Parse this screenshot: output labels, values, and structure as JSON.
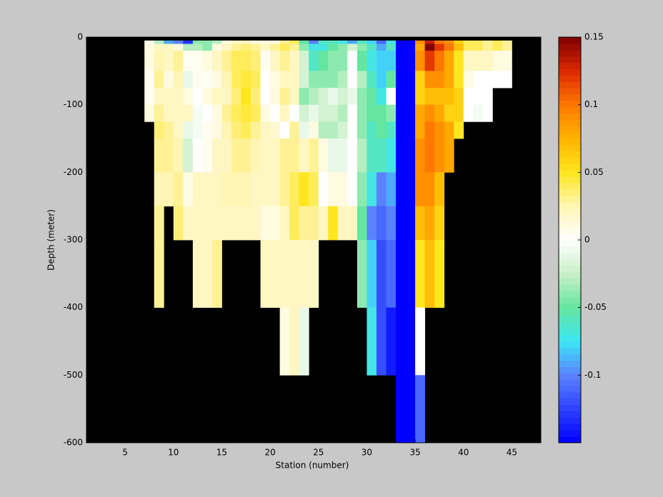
{
  "chart_data": {
    "type": "heatmap",
    "xlabel": "Station (number)",
    "ylabel": "Depth (meter)",
    "xlim": [
      1,
      48
    ],
    "ylim": [
      -600,
      0
    ],
    "xticks": [
      5,
      10,
      15,
      20,
      25,
      30,
      35,
      40,
      45
    ],
    "yticks": [
      0,
      -100,
      -200,
      -300,
      -400,
      -500,
      -600
    ],
    "background": "#000000",
    "x_edges": [
      7,
      8,
      9,
      10,
      11,
      12,
      13,
      14,
      15,
      16,
      17,
      18,
      19,
      20,
      21,
      22,
      23,
      24,
      25,
      26,
      27,
      28,
      29,
      30,
      31,
      32,
      33,
      34,
      35,
      36,
      37,
      38,
      39,
      40,
      41,
      42,
      43,
      44,
      45
    ],
    "y_edges": [
      -5,
      -10,
      -20,
      -50,
      -75,
      -100,
      -125,
      -150,
      -200,
      -250,
      -300,
      -400,
      -500,
      -600
    ],
    "values": [
      [
        0.005,
        0.01,
        0.01,
        0.005,
        0.005,
        0.01,
        null,
        null,
        null,
        null,
        null,
        null,
        null
      ],
      [
        -0.03,
        0.02,
        0.025,
        0.03,
        0.02,
        0.03,
        0.035,
        0.03,
        0.025,
        0.03,
        0.03,
        null,
        null
      ],
      [
        -0.09,
        0.02,
        0.02,
        0.01,
        0.02,
        0.02,
        0.03,
        0.03,
        0.025,
        null,
        null,
        null,
        null
      ],
      [
        -0.1,
        0.01,
        0.03,
        0.025,
        0.02,
        0.02,
        0.02,
        0.025,
        0.03,
        0.035,
        null,
        null,
        null
      ],
      [
        -0.13,
        -0.03,
        0.005,
        -0.01,
        0.01,
        0.02,
        -0.01,
        -0.02,
        0.01,
        0.02,
        null,
        null,
        null
      ],
      [
        -0.04,
        -0.03,
        0.005,
        0.005,
        0,
        -0.005,
        -0.005,
        0,
        0.02,
        0.02,
        0.02,
        null,
        null
      ],
      [
        -0.04,
        -0.04,
        0.01,
        0.005,
        0.01,
        0,
        0.005,
        0.005,
        0.02,
        0.02,
        0.02,
        null,
        null
      ],
      [
        -0.03,
        0.01,
        0.02,
        0.01,
        0.02,
        0.01,
        0.01,
        0.02,
        0.02,
        0.02,
        0.03,
        null,
        null
      ],
      [
        0.01,
        0.02,
        0.03,
        0.025,
        0.02,
        0.03,
        0.025,
        0.02,
        0.025,
        0.02,
        null,
        null,
        null
      ],
      [
        0.02,
        0.03,
        0.04,
        0.04,
        0.035,
        0.04,
        0.035,
        0.03,
        0.025,
        0.02,
        null,
        null,
        null
      ],
      [
        0.02,
        0.035,
        0.04,
        0.045,
        0.05,
        0.045,
        0.04,
        0.03,
        0.025,
        0.02,
        null,
        null,
        null
      ],
      [
        0.01,
        0.03,
        0.035,
        0.04,
        0.035,
        0.04,
        0.03,
        0.025,
        0.02,
        0.02,
        null,
        null,
        null
      ],
      [
        0.01,
        0.02,
        0.005,
        0,
        0,
        0.01,
        0.02,
        0.02,
        0.02,
        0.01,
        0.02,
        null,
        null
      ],
      [
        0.01,
        0.03,
        0.02,
        0.01,
        0.01,
        0,
        0.015,
        0.02,
        0.02,
        0.01,
        0.02,
        null,
        null
      ],
      [
        0.03,
        0.04,
        0.03,
        0.02,
        0.03,
        0.02,
        0,
        0.03,
        0.03,
        0.02,
        0.02,
        0.01,
        null
      ],
      [
        0.04,
        0.03,
        0.02,
        0.02,
        0.02,
        0,
        0.03,
        0.03,
        0.04,
        0.04,
        0.02,
        0.02,
        null
      ],
      [
        -0.05,
        -0.04,
        -0.02,
        -0.02,
        -0.04,
        -0.02,
        -0.01,
        0.02,
        0.05,
        0.03,
        0.02,
        -0.01,
        null
      ],
      [
        -0.1,
        -0.07,
        -0.06,
        -0.04,
        -0.03,
        -0.01,
        0.01,
        0.03,
        0.04,
        0.03,
        0.02,
        null,
        null
      ],
      [
        -0.06,
        -0.07,
        -0.05,
        -0.04,
        -0.02,
        -0.02,
        -0.03,
        0.01,
        0,
        0.02,
        null,
        null,
        null
      ],
      [
        -0.06,
        -0.05,
        -0.04,
        -0.04,
        -0.01,
        -0.02,
        -0.03,
        -0.01,
        0.01,
        0.05,
        null,
        null,
        null
      ],
      [
        -0.07,
        -0.04,
        -0.04,
        -0.03,
        -0.02,
        -0.03,
        -0.02,
        -0.01,
        0.01,
        0.02,
        null,
        null,
        null
      ],
      [
        -0.09,
        -0.02,
        0,
        0,
        -0.01,
        0,
        0,
        0,
        0,
        0.02,
        null,
        null,
        null
      ],
      [
        -0.06,
        -0.04,
        -0.05,
        -0.03,
        -0.04,
        -0.04,
        -0.04,
        -0.03,
        -0.04,
        -0.05,
        -0.04,
        null,
        null
      ],
      [
        -0.08,
        -0.06,
        -0.07,
        -0.06,
        -0.05,
        -0.05,
        -0.06,
        -0.06,
        -0.07,
        -0.1,
        -0.08,
        -0.07,
        null
      ],
      [
        -0.11,
        -0.09,
        -0.08,
        -0.08,
        -0.07,
        -0.05,
        -0.05,
        -0.06,
        -0.1,
        -0.11,
        -0.12,
        -0.12,
        null
      ],
      [
        -0.07,
        -0.06,
        -0.08,
        -0.05,
        0,
        -0.04,
        -0.06,
        -0.07,
        -0.09,
        -0.1,
        -0.11,
        -0.14,
        null
      ],
      [
        -0.15,
        -0.15,
        -0.15,
        -0.15,
        -0.15,
        -0.15,
        -0.15,
        -0.15,
        -0.15,
        -0.15,
        -0.15,
        -0.15,
        -0.15
      ],
      [
        -0.15,
        -0.15,
        -0.15,
        -0.15,
        -0.15,
        -0.15,
        -0.15,
        -0.15,
        -0.15,
        -0.15,
        -0.15,
        -0.15,
        -0.15
      ],
      [
        0.09,
        0.08,
        0.09,
        0.06,
        0.06,
        0.08,
        0.08,
        0.09,
        0.09,
        0.07,
        0.05,
        0,
        -0.11
      ],
      [
        0.13,
        0.15,
        0.12,
        0.09,
        0.07,
        0.09,
        0.1,
        0.1,
        0.09,
        0.08,
        0.07,
        null,
        null
      ],
      [
        0.1,
        0.12,
        0.1,
        0.09,
        0.07,
        0.08,
        0.09,
        0.09,
        0.07,
        0.06,
        0.05,
        null,
        null
      ],
      [
        0.09,
        0.1,
        0.08,
        0.08,
        0.07,
        0.06,
        0.08,
        0.08,
        null,
        null,
        null,
        null,
        null
      ],
      [
        0.06,
        0.07,
        0.05,
        0.05,
        0.06,
        0.06,
        0.05,
        null,
        null,
        null,
        null,
        null,
        null
      ],
      [
        0.04,
        0.04,
        0.02,
        0.01,
        0,
        0,
        null,
        null,
        null,
        null,
        null,
        null,
        null
      ],
      [
        0.04,
        0.04,
        0.02,
        0,
        0,
        -0.005,
        null,
        null,
        null,
        null,
        null,
        null,
        null
      ],
      [
        0.03,
        0.03,
        0.02,
        0,
        0,
        0,
        null,
        null,
        null,
        null,
        null,
        null,
        null
      ],
      [
        0.04,
        0.04,
        0.01,
        0,
        null,
        null,
        null,
        null,
        null,
        null,
        null,
        null,
        null
      ],
      [
        0.03,
        0.03,
        0.01,
        0,
        null,
        null,
        null,
        null,
        null,
        null,
        null,
        null,
        null
      ]
    ],
    "clim": [
      -0.15,
      0.15
    ],
    "colorbar_ticks": [
      0.15,
      0.1,
      0.05,
      0,
      -0.05,
      -0.1
    ],
    "colormap": [
      {
        "value": -0.15,
        "color": "#0000ff"
      },
      {
        "value": -0.1,
        "color": "#5a82ff"
      },
      {
        "value": -0.075,
        "color": "#3ce6f5"
      },
      {
        "value": -0.05,
        "color": "#64e6a0"
      },
      {
        "value": -0.025,
        "color": "#c8f0c8"
      },
      {
        "value": 0,
        "color": "#ffffff"
      },
      {
        "value": 0.025,
        "color": "#fff5b4"
      },
      {
        "value": 0.05,
        "color": "#ffe61e"
      },
      {
        "value": 0.075,
        "color": "#ffb400"
      },
      {
        "value": 0.1,
        "color": "#ff7800"
      },
      {
        "value": 0.125,
        "color": "#dc2800"
      },
      {
        "value": 0.15,
        "color": "#800000"
      }
    ]
  }
}
